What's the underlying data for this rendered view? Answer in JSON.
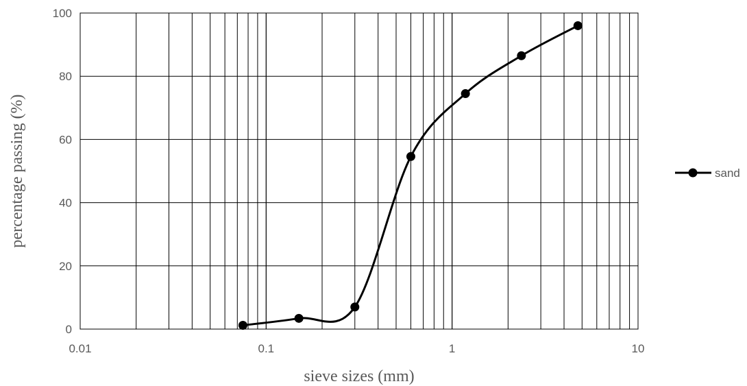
{
  "chart_data": {
    "type": "scatter",
    "xlabel": "sieve sizes (mm)",
    "ylabel": "percentage passing (%)",
    "x_scale": "log",
    "xlim": [
      0.01,
      10
    ],
    "ylim": [
      0,
      100
    ],
    "x_tick_labels": [
      "0.01",
      "0.1",
      "1",
      "10"
    ],
    "y_tick_labels": [
      "0",
      "20",
      "40",
      "60",
      "80",
      "100"
    ],
    "grid": "on",
    "legend_position": "right",
    "series": [
      {
        "name": "sand",
        "line": "smooth",
        "marker": "circle",
        "color": "#000000",
        "x": [
          0.075,
          0.15,
          0.3,
          0.6,
          1.18,
          2.36,
          4.75
        ],
        "y": [
          1.2,
          3.4,
          7.0,
          54.6,
          74.5,
          86.5,
          96.0
        ]
      }
    ]
  }
}
